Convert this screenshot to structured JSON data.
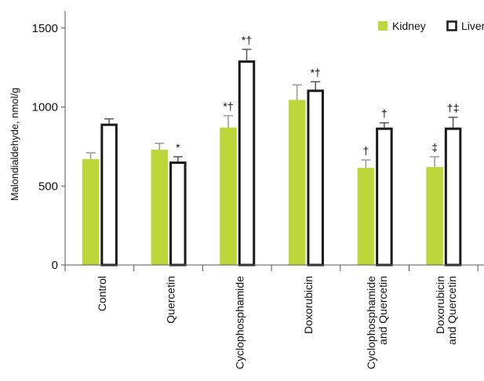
{
  "chart_data": {
    "type": "bar",
    "ylabel": "Malondialdehyde, nmol/g",
    "ylim": [
      0,
      1600
    ],
    "yticks": [
      0,
      500,
      1000,
      1500
    ],
    "categories": [
      [
        "Control"
      ],
      [
        "Quercetin"
      ],
      [
        "Cyclophosphamide"
      ],
      [
        "Doxorubicin"
      ],
      [
        "Cyclophosphamide",
        "and Quercetin"
      ],
      [
        "Doxorubicin",
        "and Quercetin"
      ]
    ],
    "series": [
      {
        "name": "Kidney",
        "color": "#bdd63a",
        "values": [
          670,
          730,
          870,
          1045,
          615,
          620
        ],
        "errors": [
          40,
          40,
          75,
          95,
          50,
          65
        ],
        "annotations": [
          "",
          "",
          "*†",
          "",
          "†",
          "‡"
        ]
      },
      {
        "name": "Liver",
        "color": "#ffffff",
        "values": [
          895,
          655,
          1295,
          1110,
          870,
          870
        ],
        "errors": [
          30,
          30,
          70,
          50,
          30,
          65
        ],
        "annotations": [
          "",
          "*",
          "*†",
          "*†",
          "†",
          "†‡"
        ]
      }
    ],
    "legend_position": "top-right",
    "grid": false
  }
}
